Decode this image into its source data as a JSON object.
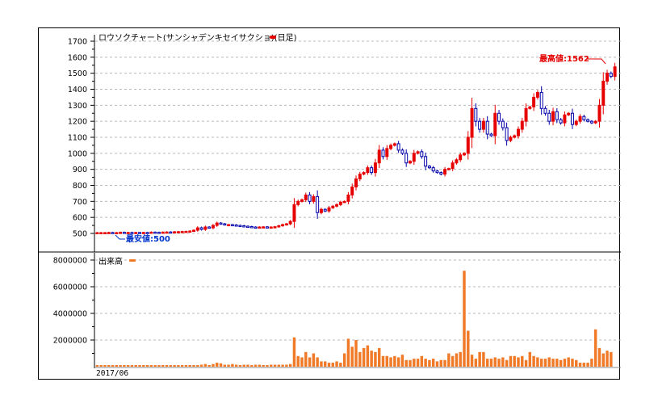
{
  "chart_data": [
    {
      "type": "candlestick",
      "title": "ロウソクチャート(サンシャデンキセイサクショ)(日足)",
      "ylim": [
        450,
        1720
      ],
      "yticks": [
        500,
        600,
        700,
        800,
        900,
        1000,
        1100,
        1200,
        1300,
        1400,
        1500,
        1600,
        1700
      ],
      "grid": true,
      "colors": {
        "up": "#e60000",
        "down": "#0000aa",
        "legend": "#e60000"
      },
      "annotations": {
        "high": "最高値:1562",
        "low": "最安値:500"
      },
      "closes": [
        505,
        505,
        505,
        506,
        504,
        505,
        507,
        505,
        506,
        505,
        506,
        505,
        506,
        505,
        508,
        507,
        506,
        508,
        509,
        507,
        510,
        511,
        512,
        513,
        515,
        520,
        535,
        525,
        540,
        535,
        550,
        565,
        560,
        555,
        555,
        553,
        550,
        548,
        545,
        543,
        540,
        538,
        540,
        541,
        539,
        540,
        542,
        548,
        555,
        560,
        575,
        680,
        700,
        710,
        740,
        700,
        730,
        630,
        650,
        640,
        660,
        670,
        680,
        695,
        700,
        740,
        790,
        840,
        870,
        880,
        910,
        880,
        940,
        1020,
        980,
        1030,
        1050,
        1060,
        1020,
        1000,
        940,
        950,
        1000,
        1010,
        980,
        920,
        910,
        890,
        880,
        870,
        900,
        905,
        940,
        960,
        990,
        1000,
        1100,
        1280,
        1200,
        1150,
        1200,
        1120,
        1110,
        1250,
        1200,
        1160,
        1080,
        1100,
        1110,
        1150,
        1200,
        1280,
        1290,
        1350,
        1380,
        1280,
        1250,
        1200,
        1260,
        1210,
        1190,
        1240,
        1250,
        1180,
        1200,
        1230,
        1210,
        1200,
        1190,
        1200,
        1300,
        1450,
        1500,
        1480,
        1540
      ],
      "volume": {
        "label": "出来高",
        "ylim": [
          0,
          8300000
        ],
        "yticks": [
          2000000,
          4000000,
          6000000,
          8000000
        ],
        "color": "#f07a28",
        "values": [
          120000,
          120000,
          120000,
          120000,
          120000,
          120000,
          120000,
          120000,
          120000,
          120000,
          120000,
          120000,
          120000,
          120000,
          120000,
          120000,
          120000,
          120000,
          120000,
          120000,
          120000,
          120000,
          120000,
          120000,
          120000,
          120000,
          120000,
          150000,
          200000,
          120000,
          200000,
          300000,
          250000,
          150000,
          150000,
          200000,
          150000,
          120000,
          150000,
          150000,
          120000,
          150000,
          150000,
          120000,
          120000,
          150000,
          150000,
          150000,
          150000,
          150000,
          200000,
          2200000,
          800000,
          700000,
          1100000,
          700000,
          1000000,
          700000,
          400000,
          400000,
          300000,
          300000,
          400000,
          300000,
          1000000,
          2100000,
          1500000,
          2000000,
          1100000,
          1400000,
          1600000,
          1200000,
          1100000,
          1400000,
          800000,
          800000,
          700000,
          800000,
          700000,
          900000,
          500000,
          500000,
          600000,
          600000,
          800000,
          600000,
          500000,
          600000,
          400000,
          500000,
          500000,
          1000000,
          800000,
          1000000,
          1100000,
          7200000,
          2700000,
          900000,
          600000,
          1100000,
          1100000,
          600000,
          600000,
          700000,
          600000,
          700000,
          500000,
          800000,
          800000,
          700000,
          800000,
          500000,
          1100000,
          800000,
          700000,
          600000,
          600000,
          700000,
          600000,
          600000,
          500000,
          600000,
          700000,
          600000,
          500000,
          300000,
          300000,
          300000,
          600000,
          2800000,
          1400000,
          1000000,
          1200000,
          1100000
        ]
      },
      "x_start_label": "2017/06"
    }
  ]
}
